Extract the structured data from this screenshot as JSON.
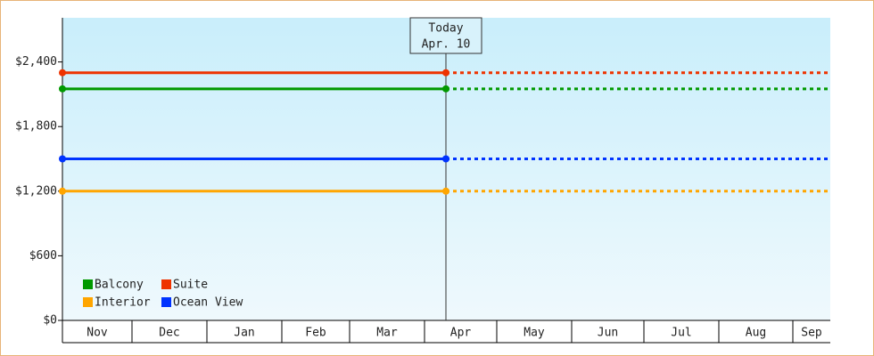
{
  "chart_data": {
    "type": "line",
    "categories": [
      "Nov",
      "Dec",
      "Jan",
      "Feb",
      "Mar",
      "Apr",
      "May",
      "Jun",
      "Jul",
      "Aug",
      "Sep"
    ],
    "annotation": {
      "title": "Today",
      "date": "Apr. 10"
    },
    "series": [
      {
        "name": "Balcony",
        "color": "#009900",
        "value": 2150
      },
      {
        "name": "Suite",
        "color": "#ee3300",
        "value": 2300
      },
      {
        "name": "Interior",
        "color": "#ffa500",
        "value": 1200
      },
      {
        "name": "Ocean View",
        "color": "#0033ff",
        "value": 1500
      }
    ],
    "ylim": [
      0,
      2810
    ],
    "yticks": [
      {
        "value": 0,
        "label": "$0"
      },
      {
        "value": 600,
        "label": "$600"
      },
      {
        "value": 1200,
        "label": "$1,200"
      },
      {
        "value": 1800,
        "label": "$1,800"
      },
      {
        "value": 2400,
        "label": "$2,400"
      }
    ]
  }
}
